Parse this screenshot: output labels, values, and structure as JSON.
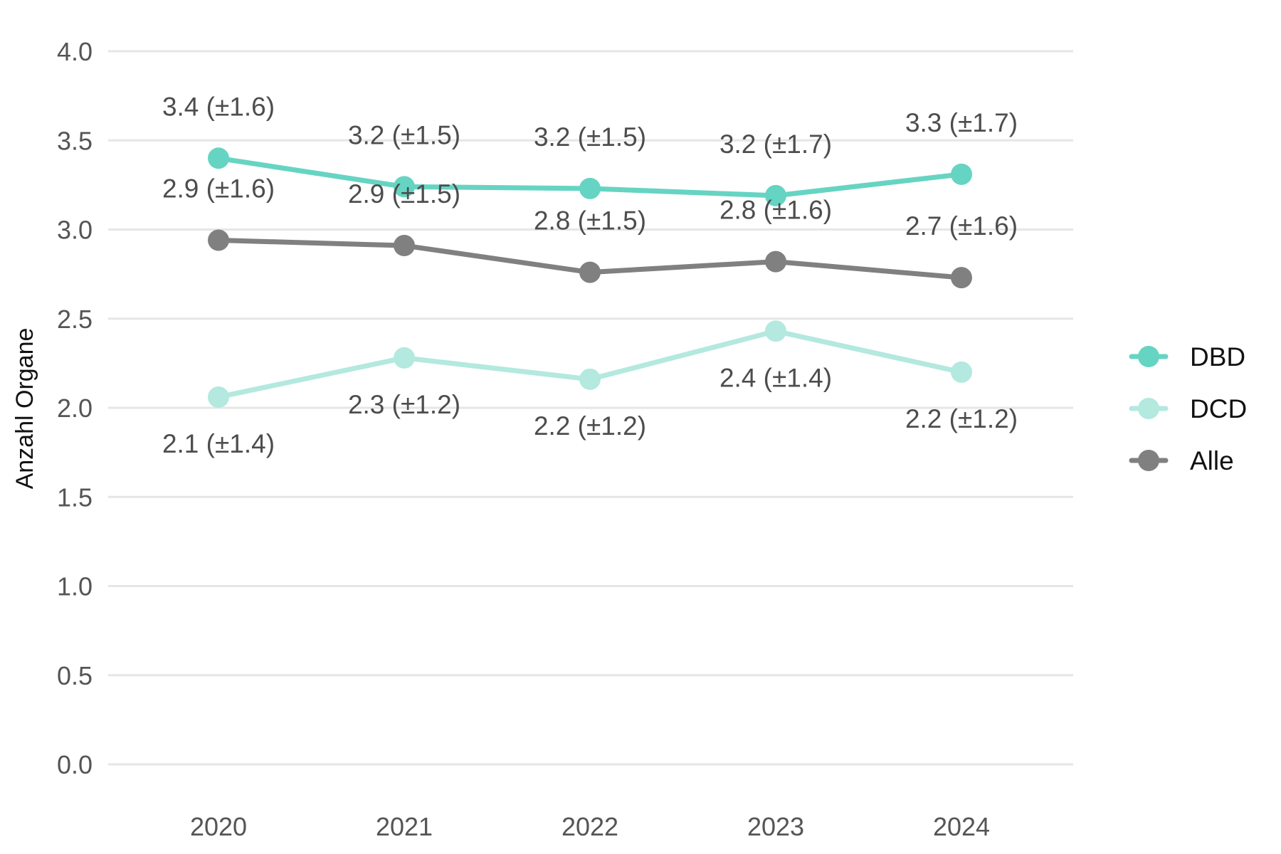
{
  "chart_data": {
    "type": "line",
    "title": "",
    "xlabel": "",
    "ylabel": "Anzahl Organe",
    "categories": [
      "2020",
      "2021",
      "2022",
      "2023",
      "2024"
    ],
    "ylim": [
      0,
      4
    ],
    "yticks": [
      "0.0",
      "0.5",
      "1.0",
      "1.5",
      "2.0",
      "2.5",
      "3.0",
      "3.5",
      "4.0"
    ],
    "grid": true,
    "legend_position": "right",
    "series": [
      {
        "name": "DBD",
        "color": "#66d4c2",
        "values": [
          3.4,
          3.24,
          3.23,
          3.19,
          3.31
        ],
        "labels": [
          "3.4 (±1.6)",
          "3.2 (±1.5)",
          "3.2 (±1.5)",
          "3.2 (±1.7)",
          "3.3 (±1.7)"
        ],
        "label_position": "above"
      },
      {
        "name": "DCD",
        "color": "#b3e9df",
        "values": [
          2.06,
          2.28,
          2.16,
          2.43,
          2.2
        ],
        "labels": [
          "2.1 (±1.4)",
          "2.3 (±1.2)",
          "2.2 (±1.2)",
          "2.4 (±1.4)",
          "2.2 (±1.2)"
        ],
        "label_position": "below"
      },
      {
        "name": "Alle",
        "color": "#808080",
        "values": [
          2.94,
          2.91,
          2.76,
          2.82,
          2.73
        ],
        "labels": [
          "2.9 (±1.6)",
          "2.9 (±1.5)",
          "2.8 (±1.5)",
          "2.8 (±1.6)",
          "2.7 (±1.6)"
        ],
        "label_position": "above"
      }
    ]
  }
}
